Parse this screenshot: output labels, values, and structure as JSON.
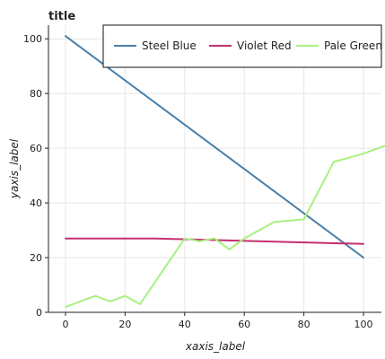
{
  "chart_data": {
    "type": "line",
    "title": "title",
    "xlabel": "xaxis_label",
    "ylabel": "yaxis_label",
    "xlim": [
      0,
      100
    ],
    "ylim": [
      0,
      105
    ],
    "x_ticks": [
      0,
      20,
      40,
      60,
      80,
      100
    ],
    "y_ticks": [
      0,
      20,
      40,
      60,
      80,
      100
    ],
    "x_tick_labels": [
      "0",
      "20",
      "40",
      "60",
      "80",
      "100"
    ],
    "y_tick_labels": [
      "0",
      "20",
      "40",
      "60",
      "80",
      "100"
    ],
    "grid": true,
    "legend_position": "top-right",
    "series": [
      {
        "name": "Steel Blue",
        "color": "#4a7fa8",
        "points": [
          [
            0,
            101
          ],
          [
            100,
            20
          ]
        ]
      },
      {
        "name": "Violet Red",
        "color": "#c2306f",
        "points": [
          [
            0,
            27
          ],
          [
            30,
            27
          ],
          [
            100,
            25
          ]
        ]
      },
      {
        "name": "Pale Green",
        "color": "#a8f080",
        "points": [
          [
            0,
            2
          ],
          [
            10,
            6
          ],
          [
            15,
            4
          ],
          [
            20,
            6
          ],
          [
            25,
            3
          ],
          [
            40,
            27
          ],
          [
            45,
            26
          ],
          [
            50,
            27
          ],
          [
            55,
            23
          ],
          [
            60,
            27
          ],
          [
            70,
            33
          ],
          [
            80,
            34
          ],
          [
            90,
            55
          ],
          [
            100,
            58
          ],
          [
            110,
            62
          ]
        ]
      }
    ]
  }
}
